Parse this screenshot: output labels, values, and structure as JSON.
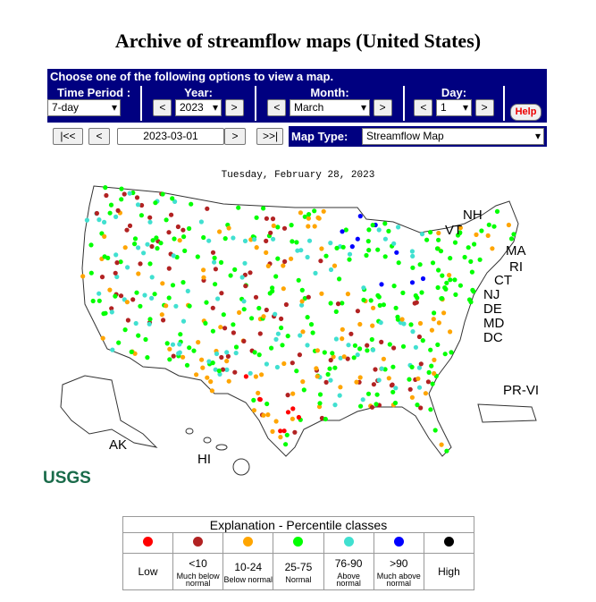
{
  "header": {
    "title": "Archive of streamflow maps (United States)"
  },
  "controls": {
    "prompt": "Choose one of the following options to view a map.",
    "time_period": {
      "label": "Time Period :",
      "value": "7-day"
    },
    "year": {
      "label": "Year:",
      "prev": "<",
      "value": "2023",
      "next": ">"
    },
    "month": {
      "label": "Month:",
      "prev": "<",
      "value": "March",
      "next": ">"
    },
    "day": {
      "label": "Day:",
      "prev": "<",
      "value": "1",
      "next": ">"
    },
    "help": "Help",
    "nav": {
      "first": "|<<",
      "prev": "<",
      "date": "2023-03-01",
      "next": ">",
      "last": ">>|"
    },
    "map_type": {
      "label": "Map Type:",
      "value": "Streamflow Map"
    }
  },
  "map": {
    "date": "Tuesday, February 28, 2023",
    "state_labels": [
      "NH",
      "VT",
      "MA",
      "RI",
      "CT",
      "NJ",
      "DE",
      "MD",
      "DC",
      "PR-VI",
      "AK",
      "HI"
    ],
    "logo": "USGS"
  },
  "legend": {
    "title": "Explanation - Percentile classes",
    "classes": [
      {
        "label": "Low",
        "color": "#ff0000"
      },
      {
        "range": "<10",
        "description": "Much below normal",
        "color": "#b22222"
      },
      {
        "range": "10-24",
        "description": "Below normal",
        "color": "#ffa500"
      },
      {
        "range": "25-75",
        "description": "Normal",
        "color": "#00ff00"
      },
      {
        "range": "76-90",
        "description": "Above normal",
        "color": "#40e0d0"
      },
      {
        "range": ">90",
        "description": "Much above normal",
        "color": "#0000ff"
      },
      {
        "label": "High",
        "color": "#000000"
      }
    ]
  }
}
